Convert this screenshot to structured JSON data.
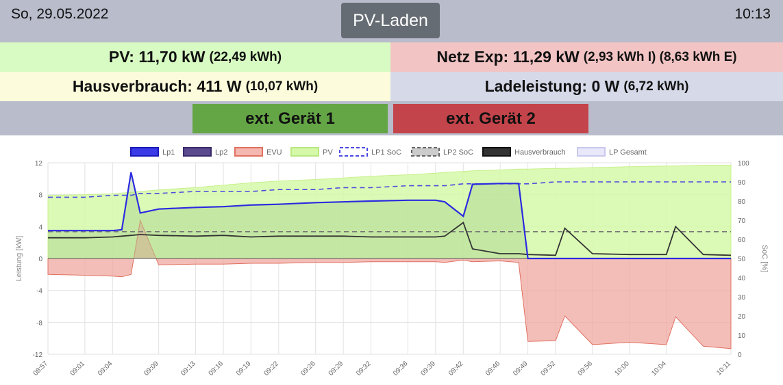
{
  "header": {
    "date": "So, 29.05.2022",
    "mode": "PV-Laden",
    "time": "10:13"
  },
  "tiles": {
    "pv": {
      "main": "PV: 11,70 kW",
      "sub": "(22,49 kWh)"
    },
    "netz": {
      "main": "Netz Exp: 11,29 kW",
      "sub": "(2,93 kWh I) (8,63 kWh E)"
    },
    "haus": {
      "main": "Hausverbrauch: 411 W",
      "sub": "(10,07 kWh)"
    },
    "lade": {
      "main": "Ladeleistung: 0 W",
      "sub": "(6,72 kWh)"
    }
  },
  "devices": {
    "dev1": "ext. Gerät 1",
    "dev2": "ext. Gerät 2"
  },
  "colors": {
    "pv": "#d7fbc2",
    "netz": "#f2c4c4",
    "haus": "#fcfcdc",
    "lade": "#d6d9e8",
    "dev_on": "#64a645",
    "dev_off": "#c3444a",
    "lp1": "#2b2be0",
    "lp2": "#4b3a7d",
    "evu": "#f0a8a0",
    "pvfill": "#d5f9a8",
    "soc1": "#4a4ae0",
    "soc2": "#777777",
    "haus_line": "#333333",
    "gesamt": "#dcdcf5"
  },
  "chart_data": {
    "type": "line",
    "legend": [
      "Lp1",
      "Lp2",
      "EVU",
      "PV",
      "LP1 SoC",
      "LP2 SoC",
      "Hausverbrauch",
      "LP Gesamt"
    ],
    "ylabel": "Leistung [kW]",
    "y2label": "SoC [%]",
    "ylim": [
      -12,
      12
    ],
    "y2lim": [
      0,
      100
    ],
    "yticks": [
      "12",
      "8",
      "4",
      "0",
      "-4",
      "-8",
      "-12"
    ],
    "y2ticks": [
      "100",
      "90",
      "80",
      "70",
      "60",
      "50",
      "40",
      "30",
      "20",
      "10",
      "0"
    ],
    "xticks": [
      "08:57",
      "09:01",
      "09:04",
      "09:09",
      "09:13",
      "09:16",
      "09:19",
      "09:22",
      "09:26",
      "09:29",
      "09:32",
      "09:36",
      "09:39",
      "09:42",
      "09:46",
      "09:49",
      "09:52",
      "09:56",
      "10:00",
      "10:04",
      "10:11"
    ],
    "x": [
      "08:57",
      "09:01",
      "09:04",
      "09:05",
      "09:06",
      "09:07",
      "09:09",
      "09:13",
      "09:16",
      "09:19",
      "09:22",
      "09:26",
      "09:29",
      "09:32",
      "09:36",
      "09:39",
      "09:40",
      "09:42",
      "09:43",
      "09:46",
      "09:48",
      "09:49",
      "09:52",
      "09:53",
      "09:56",
      "10:00",
      "10:04",
      "10:05",
      "10:08",
      "10:11"
    ],
    "series": [
      {
        "name": "PV",
        "values": [
          7.9,
          8.0,
          8.1,
          8.2,
          8.3,
          8.4,
          8.6,
          8.9,
          9.2,
          9.5,
          9.7,
          9.9,
          10.1,
          10.3,
          10.5,
          10.7,
          10.8,
          10.9,
          11.0,
          11.1,
          11.2,
          11.2,
          11.3,
          11.3,
          11.4,
          11.5,
          11.6,
          11.6,
          11.7,
          11.7
        ]
      },
      {
        "name": "EVU",
        "values": [
          -2.0,
          -2.1,
          -2.2,
          -2.3,
          -2.0,
          4.8,
          -0.8,
          -0.7,
          -0.7,
          -0.6,
          -0.6,
          -0.5,
          -0.5,
          -0.4,
          -0.4,
          -0.4,
          -0.5,
          -0.2,
          -0.4,
          -0.3,
          -0.5,
          -10.4,
          -10.3,
          -7.2,
          -10.8,
          -10.5,
          -10.8,
          -7.3,
          -11.0,
          -11.3
        ]
      },
      {
        "name": "Lp1",
        "values": [
          3.5,
          3.5,
          3.5,
          3.6,
          10.8,
          5.7,
          6.2,
          6.4,
          6.5,
          6.7,
          6.8,
          7.0,
          7.1,
          7.2,
          7.3,
          7.3,
          7.1,
          5.3,
          9.3,
          9.4,
          9.4,
          0,
          0,
          0,
          0,
          0,
          0,
          0,
          0,
          0
        ]
      },
      {
        "name": "Hausverbrauch",
        "values": [
          2.6,
          2.6,
          2.7,
          2.8,
          2.9,
          3.0,
          2.9,
          2.8,
          2.9,
          2.7,
          2.8,
          2.8,
          2.8,
          2.7,
          2.7,
          2.7,
          2.8,
          4.5,
          1.2,
          0.6,
          0.6,
          0.5,
          0.4,
          3.8,
          0.6,
          0.5,
          0.5,
          4.0,
          0.5,
          0.4
        ]
      },
      {
        "name": "LP1 SoC",
        "values": [
          82,
          82,
          83,
          83,
          83,
          84,
          84,
          85,
          85,
          85,
          86,
          86,
          87,
          87,
          88,
          88,
          88,
          89,
          89,
          89,
          89,
          89,
          90,
          90,
          90,
          90,
          90,
          90,
          90,
          90
        ]
      },
      {
        "name": "LP2 SoC",
        "values": [
          64,
          64,
          64,
          64,
          64,
          64,
          64,
          64,
          64,
          64,
          64,
          64,
          64,
          64,
          64,
          64,
          64,
          64,
          64,
          64,
          64,
          64,
          64,
          64,
          64,
          64,
          64,
          64,
          64,
          64
        ]
      }
    ]
  }
}
